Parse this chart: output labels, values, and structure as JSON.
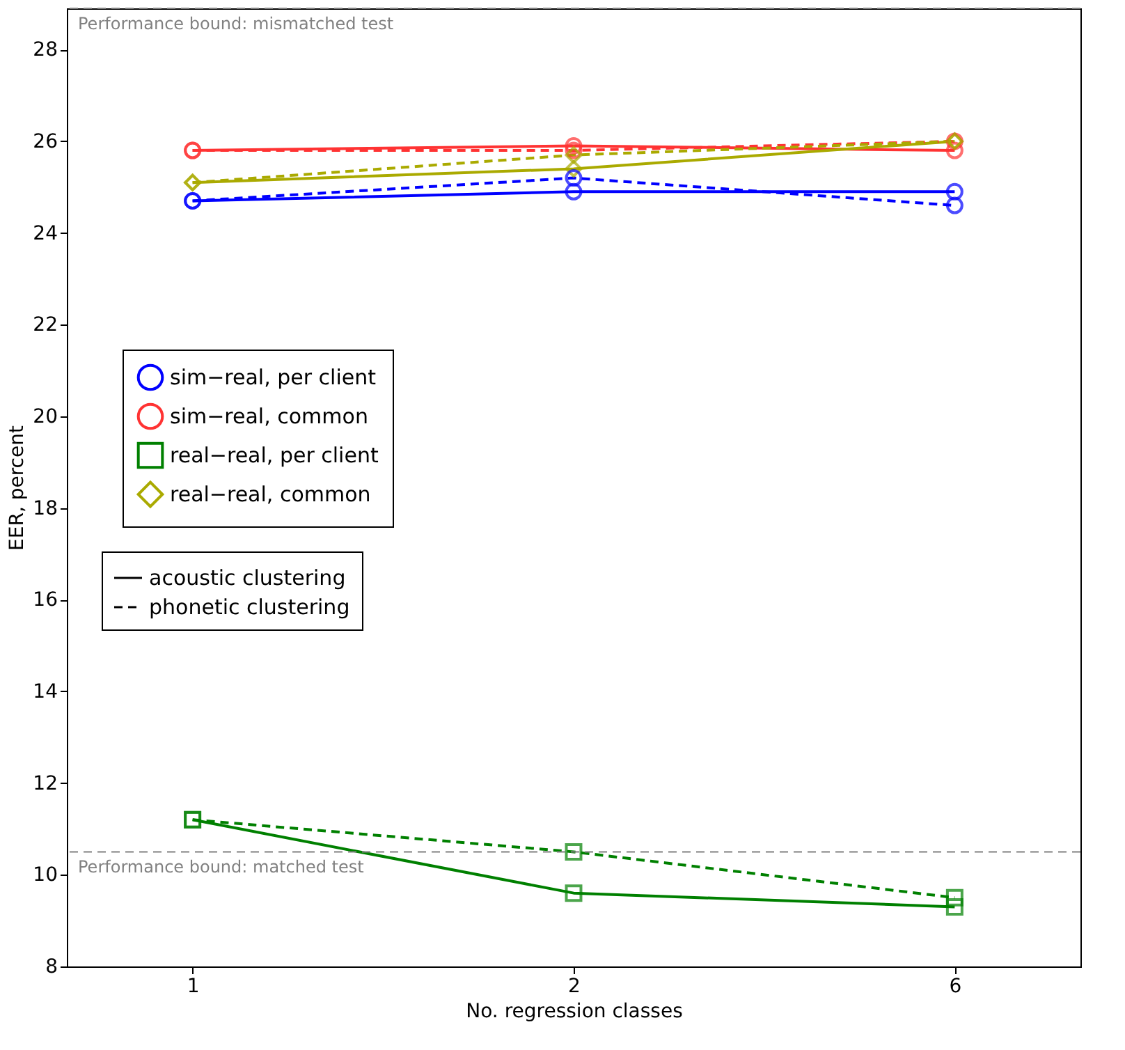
{
  "chart_data": {
    "type": "line",
    "xlabel": "No. regression classes",
    "ylabel": "EER, percent",
    "categories": [
      "1",
      "2",
      "6"
    ],
    "ylim": [
      8,
      28.9
    ],
    "yticks": [
      8,
      10,
      12,
      14,
      16,
      18,
      20,
      22,
      24,
      26,
      28
    ],
    "grid": false,
    "legend": "left",
    "series": [
      {
        "name": "sim−real, per client",
        "color": "#0000ff",
        "values": [
          24.7,
          24.9,
          24.9
        ],
        "marker": "circle",
        "line_style": "solid"
      },
      {
        "name": "sim−real, common",
        "color": "#ff3333",
        "values": [
          25.8,
          25.9,
          25.8
        ],
        "marker": "circle",
        "line_style": "solid"
      },
      {
        "name": "real−real, per client",
        "color": "#008000",
        "values": [
          11.2,
          9.6,
          9.3
        ],
        "marker": "square",
        "line_style": "solid"
      },
      {
        "name": "real−real, common",
        "color": "#aaaa00",
        "values": [
          25.1,
          25.4,
          26.0
        ],
        "marker": "diamond",
        "line_style": "solid"
      },
      {
        "color": "#0000ff",
        "values": [
          24.7,
          25.2,
          24.6
        ],
        "marker": "circle",
        "line_style": "dashed"
      },
      {
        "color": "#ff3333",
        "values": [
          25.8,
          25.8,
          26.0
        ],
        "marker": "circle",
        "line_style": "dashed"
      },
      {
        "color": "#008000",
        "values": [
          11.2,
          10.5,
          9.5
        ],
        "marker": "square",
        "line_style": "dashed"
      },
      {
        "color": "#aaaa00",
        "values": [
          25.1,
          25.7,
          26.0
        ],
        "marker": "diamond",
        "line_style": "dashed"
      }
    ],
    "annotations": [
      "acoustic clustering",
      "phonetic clustering"
    ],
    "ref_lines": [
      {
        "axis": "y",
        "value": 28.9,
        "label": "Performance bound: mismatched test",
        "color": "#808080",
        "line_style": "dashed"
      },
      {
        "axis": "y",
        "value": 10.5,
        "label": "Performance bound: matched test",
        "color": "#808080",
        "line_style": "dashed"
      }
    ]
  }
}
